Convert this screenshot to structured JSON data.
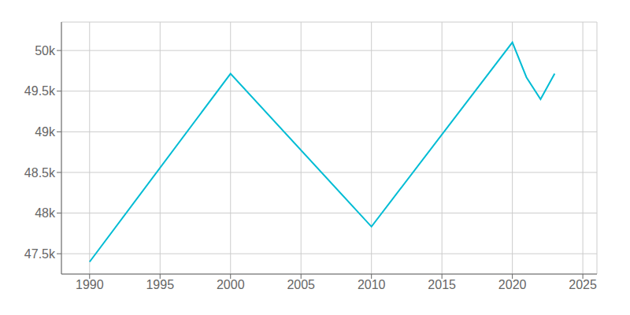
{
  "chart_data": {
    "type": "line",
    "x": [
      1990,
      2000,
      2010,
      2020,
      2021,
      2022,
      2023
    ],
    "values": [
      47400,
      49715,
      47833,
      50100,
      49670,
      49400,
      49715
    ],
    "color": "#00BCD4",
    "xlim": [
      1988,
      2026
    ],
    "ylim": [
      47250,
      50350
    ],
    "xticks": [
      1990,
      1995,
      2000,
      2005,
      2010,
      2015,
      2020,
      2025
    ],
    "yticks": [
      {
        "value": 47500,
        "label": "47.5k"
      },
      {
        "value": 48000,
        "label": "48k"
      },
      {
        "value": 48500,
        "label": "48.5k"
      },
      {
        "value": 49000,
        "label": "49k"
      },
      {
        "value": 49500,
        "label": "49.5k"
      },
      {
        "value": 50000,
        "label": "50k"
      }
    ],
    "grid": true
  }
}
